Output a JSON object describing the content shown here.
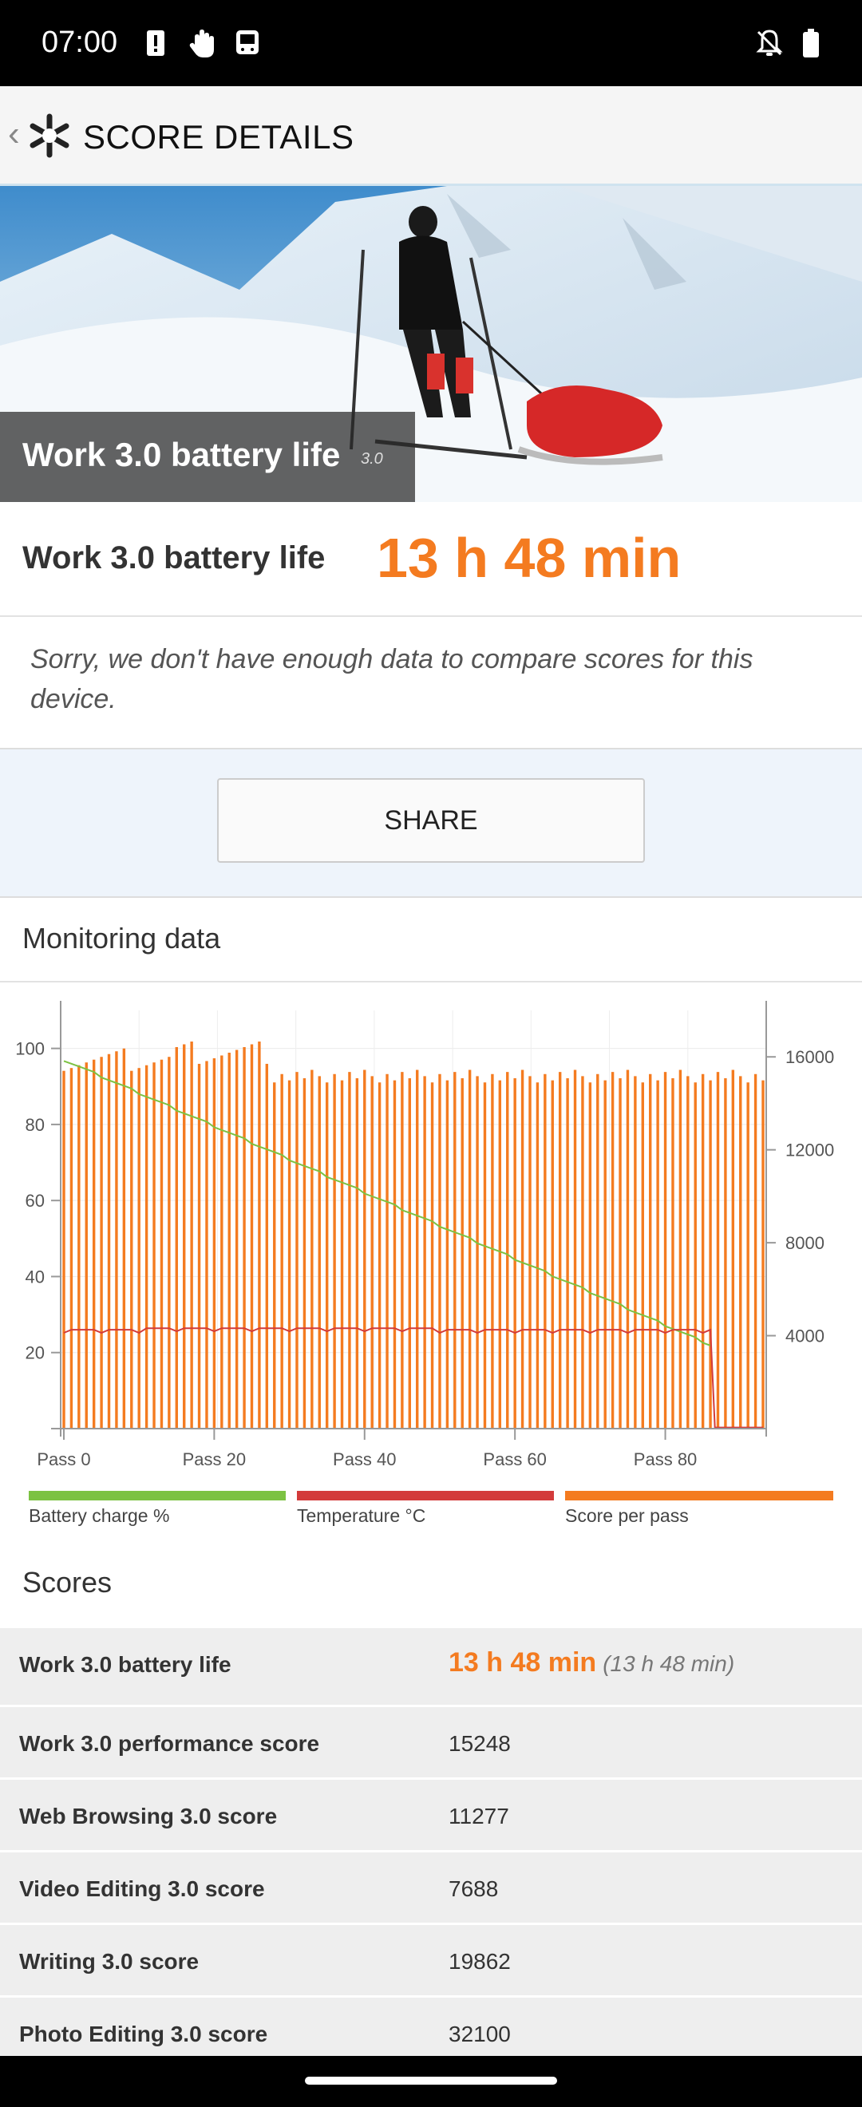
{
  "status_bar": {
    "time": "07:00",
    "icons": [
      "alert-icon",
      "hand-icon",
      "device-icon",
      "notifications-off-icon",
      "battery-icon"
    ]
  },
  "app_bar": {
    "title": "SCORE DETAILS",
    "back_icon": "chevron-left-icon",
    "logo_icon": "snowflake-icon"
  },
  "hero": {
    "caption": "Work 3.0 battery life",
    "version": "3.0"
  },
  "result": {
    "label": "Work 3.0 battery life",
    "value": "13 h 48 min",
    "note": "Sorry, we don't have enough data to compare scores for this device."
  },
  "share": {
    "label": "SHARE"
  },
  "monitoring": {
    "title": "Monitoring data",
    "legend": [
      {
        "label": "Battery charge %",
        "color": "#7cc242"
      },
      {
        "label": "Temperature °C",
        "color": "#d33b3b"
      },
      {
        "label": "Score per pass",
        "color": "#f47b20"
      }
    ]
  },
  "chart_data": {
    "type": "bar",
    "x_ticks": [
      "Pass 0",
      "Pass 20",
      "Pass 40",
      "Pass 60",
      "Pass 80"
    ],
    "left_ticks": [
      "20",
      "40",
      "60",
      "80",
      "100"
    ],
    "right_ticks": [
      "4000",
      "8000",
      "12000",
      "16000"
    ],
    "series": [
      {
        "name": "Score per pass",
        "axis": "right",
        "values_range": [
          14000,
          16500
        ]
      },
      {
        "name": "Battery charge %",
        "axis": "left",
        "start": 97,
        "end": 22,
        "end_pass": 86
      },
      {
        "name": "Temperature °C",
        "axis": "left",
        "approx": 26,
        "end_pass": 86
      }
    ],
    "left_ylim": [
      0,
      110
    ],
    "right_ylim": [
      0,
      18000
    ]
  },
  "scores": {
    "title": "Scores",
    "rows": [
      {
        "name": "Work 3.0 battery life",
        "value": "13 h 48 min",
        "sub": "(13 h 48 min)"
      },
      {
        "name": "Work 3.0 performance score",
        "value": "15248"
      },
      {
        "name": "Web Browsing 3.0 score",
        "value": "11277"
      },
      {
        "name": "Video Editing 3.0 score",
        "value": "7688"
      },
      {
        "name": "Writing 3.0 score",
        "value": "19862"
      },
      {
        "name": "Photo Editing 3.0 score",
        "value": "32100"
      }
    ]
  }
}
